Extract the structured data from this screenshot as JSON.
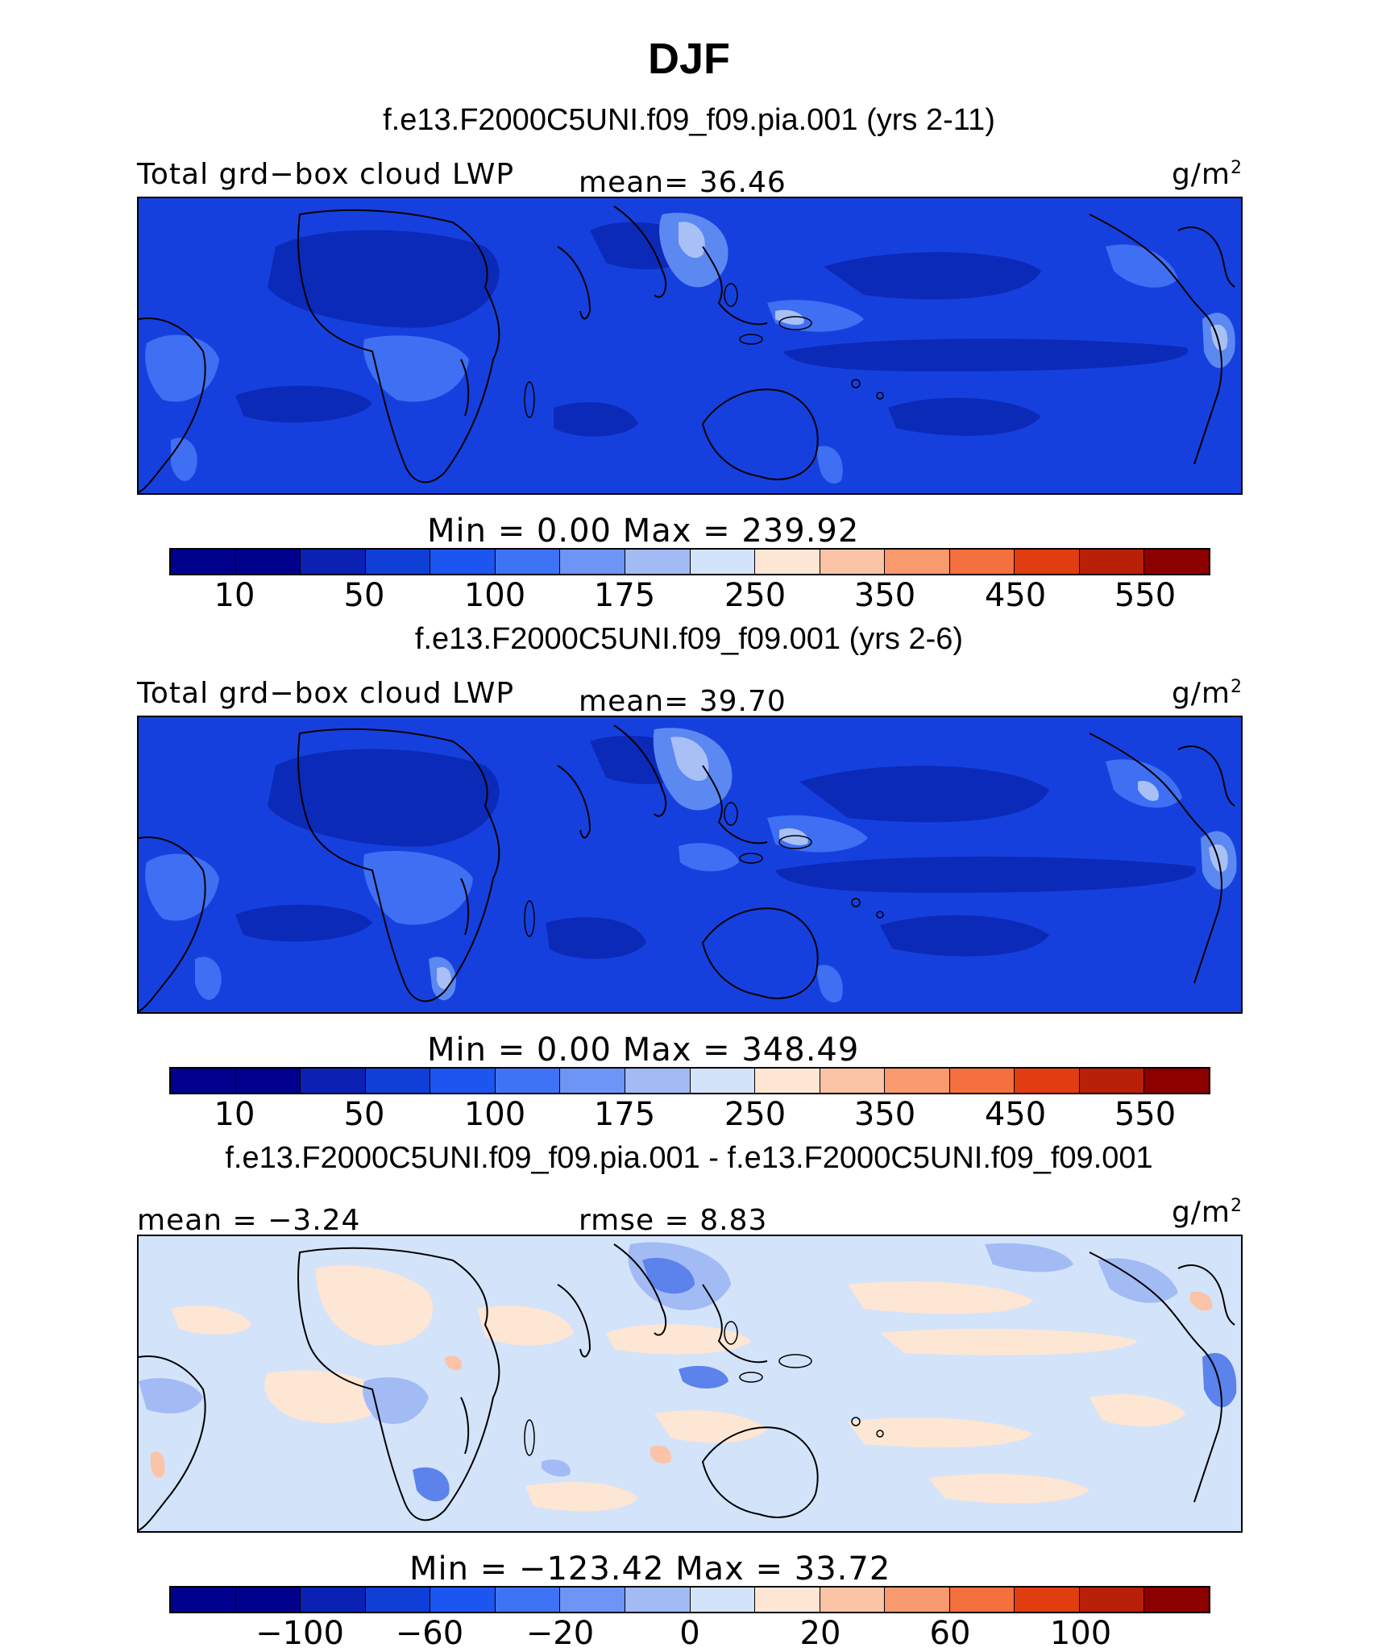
{
  "title": "DJF",
  "panels": [
    {
      "case_title": "f.e13.F2000C5UNI.f09_f09.pia.001 (yrs 2-11)",
      "left_label": "Total grd−box cloud LWP",
      "center_label": "mean=  36.46",
      "unit": "g/m",
      "unit_sup": "2",
      "minmax": "Min =    0.00 Max = 239.92",
      "colorbar_ticks": [
        "10",
        "50",
        "100",
        "175",
        "250",
        "350",
        "450",
        "550"
      ]
    },
    {
      "case_title": "f.e13.F2000C5UNI.f09_f09.001 (yrs 2-6)",
      "left_label": "Total grd−box cloud LWP",
      "center_label": "mean=  39.70",
      "unit": "g/m",
      "unit_sup": "2",
      "minmax": "Min =    0.00 Max = 348.49",
      "colorbar_ticks": [
        "10",
        "50",
        "100",
        "175",
        "250",
        "350",
        "450",
        "550"
      ]
    },
    {
      "case_title": "f.e13.F2000C5UNI.f09_f09.pia.001 - f.e13.F2000C5UNI.f09_f09.001",
      "left_label": "mean =  −3.24",
      "center_label": "rmse =   8.83",
      "unit": "g/m",
      "unit_sup": "2",
      "minmax": "Min = −123.42 Max =   33.72",
      "colorbar_ticks": [
        "−100",
        "−60",
        "−20",
        "0",
        "20",
        "60",
        "100"
      ]
    }
  ],
  "colorbar_colors": [
    "#00008c",
    "#0a21b4",
    "#0f3fd6",
    "#1c55ef",
    "#3f73f5",
    "#6c95f5",
    "#a2bbf5",
    "#d3e3fa",
    "#fde6d4",
    "#fbc4a6",
    "#f99a6e",
    "#f4703e",
    "#e03d10",
    "#b82008",
    "#8c0000"
  ],
  "map_colors": {
    "dark": "#0b2ab8",
    "base": "#1640de",
    "mid": "#2a58ee",
    "light": "#5c88f2",
    "pale": "#a8c0f6",
    "diff_base": "#d3e3fa",
    "diff_warm": "#fde6d4",
    "diff_cool": "#a2bbf5",
    "diff_blue": "#5c82ec"
  }
}
